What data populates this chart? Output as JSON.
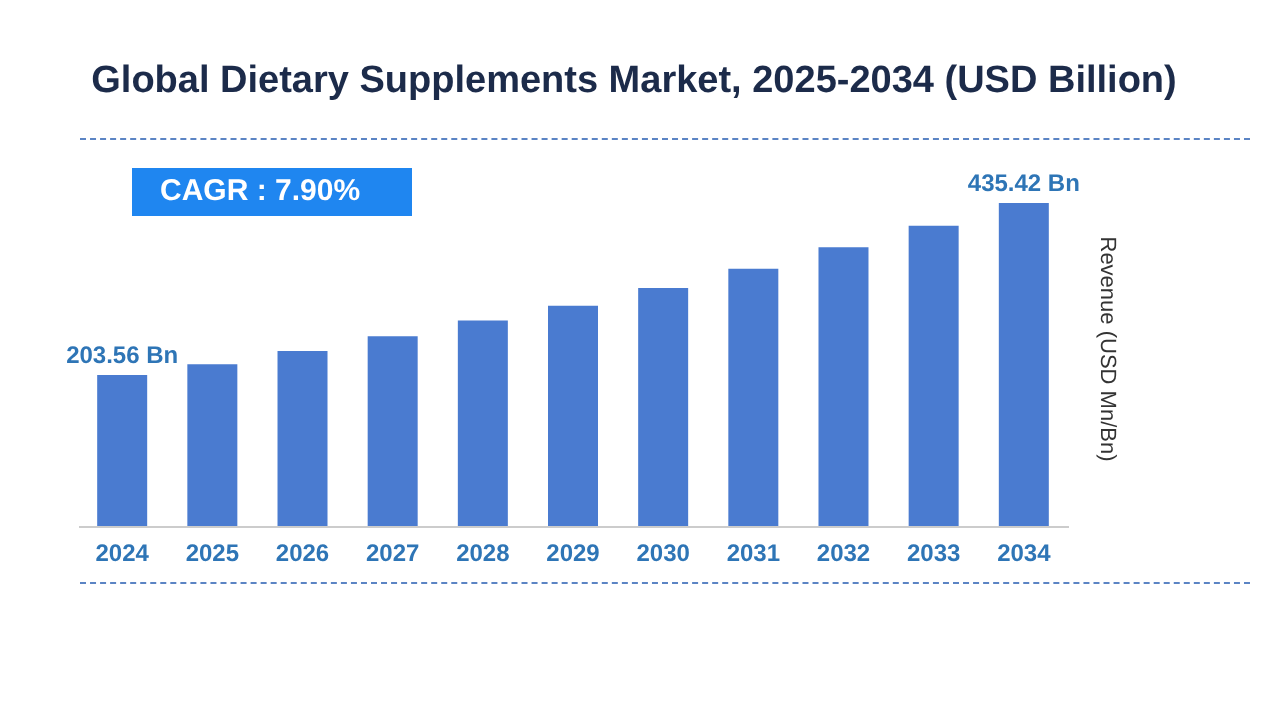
{
  "chart_data": {
    "type": "bar",
    "title": "Global Dietary Supplements Market, 2025-2034 (USD Billion)",
    "ylabel": "Revenue (USD Mn/Bn)",
    "categories": [
      "2024",
      "2025",
      "2026",
      "2027",
      "2028",
      "2029",
      "2030",
      "2031",
      "2032",
      "2033",
      "2034"
    ],
    "values": [
      203.56,
      218,
      236,
      256,
      277,
      297,
      321,
      347,
      376,
      405,
      435.42
    ],
    "value_labels": [
      "203.56 Bn",
      null,
      null,
      null,
      null,
      null,
      null,
      null,
      null,
      null,
      "435.42 Bn"
    ],
    "color": "#4a7bd0",
    "ylim": [
      0,
      480
    ],
    "tick_labels": "x",
    "grid": false,
    "annotations": [
      "CAGR : 7.90%"
    ]
  }
}
